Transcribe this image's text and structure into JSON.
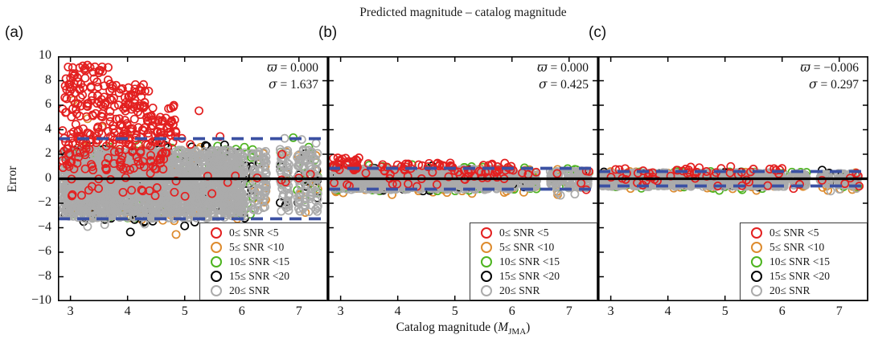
{
  "title": "Predicted magnitude – catalog magnitude",
  "axes": {
    "ylabel": "Error",
    "xlabel_prefix": "Catalog magnitude (",
    "xlabel_M": "M",
    "xlabel_sub": "JMA",
    "xlabel_suffix": ")",
    "y_ticks": [
      {
        "v": 10,
        "t": "10"
      },
      {
        "v": 8,
        "t": "8"
      },
      {
        "v": 6,
        "t": "6"
      },
      {
        "v": 4,
        "t": "4"
      },
      {
        "v": 2,
        "t": "2"
      },
      {
        "v": 0,
        "t": "0"
      },
      {
        "v": -2,
        "t": "−2"
      },
      {
        "v": -4,
        "t": "−4"
      },
      {
        "v": -6,
        "t": "−6"
      },
      {
        "v": -8,
        "t": "−8"
      },
      {
        "v": -10,
        "t": "−10"
      }
    ],
    "x_ticks": [
      {
        "v": 3,
        "t": "3"
      },
      {
        "v": 4,
        "t": "4"
      },
      {
        "v": 5,
        "t": "5"
      },
      {
        "v": 6,
        "t": "6"
      },
      {
        "v": 7,
        "t": "7"
      }
    ]
  },
  "legend": {
    "items": [
      {
        "key": "red",
        "label": "0≤ SNR <5"
      },
      {
        "key": "orange",
        "label": "5≤ SNR <10"
      },
      {
        "key": "green",
        "label": "10≤ SNR <15"
      },
      {
        "key": "black",
        "label": "15≤ SNR <20"
      },
      {
        "key": "gray",
        "label": "20≤ SNR"
      }
    ]
  },
  "colors": {
    "red": "#e32020",
    "orange": "#dd8b2e",
    "green": "#4db41f",
    "black": "#000000",
    "gray": "#ababab",
    "dashed": "#3b51a3",
    "zero": "#000000",
    "axis": "#000000"
  },
  "chart_data": {
    "type": "scatter",
    "x_range": [
      2.78,
      7.51
    ],
    "y_range": [
      -10,
      10
    ],
    "cols_x": [
      6.2,
      6.3,
      6.4,
      6.7,
      6.8,
      7.0,
      7.1,
      7.2,
      7.3
    ],
    "panels": [
      {
        "label": "(a)",
        "varpi_sym": "ϖ",
        "varpi_val": " = 0.000",
        "sigma_sym": "σ",
        "sigma_val": " = 1.637",
        "dashed_y": [
          3.27,
          -3.27
        ],
        "zero_y": 0,
        "clusters": [
          {
            "c": "orange",
            "n": 120,
            "x": [
              2.85,
              6.05
            ],
            "y": [
              -3.45,
              2.7
            ]
          },
          {
            "c": "orange",
            "cols": true,
            "n": 28,
            "y": [
              -2.9,
              2.3
            ]
          },
          {
            "c": "orange",
            "pts": [
              [
                4.85,
                -4.55
              ],
              [
                5.35,
                -4.2
              ],
              [
                3.05,
                6.4
              ],
              [
                3.3,
                4.9
              ],
              [
                3.55,
                4.2
              ],
              [
                4.0,
                3.6
              ]
            ]
          },
          {
            "c": "green",
            "n": 130,
            "x": [
              2.85,
              6.1
            ],
            "y": [
              -3.2,
              2.75
            ]
          },
          {
            "c": "green",
            "cols": true,
            "n": 24,
            "y": [
              -2.2,
              2.7
            ]
          },
          {
            "c": "green",
            "pts": [
              [
                6.9,
                3.35
              ],
              [
                6.15,
                -2.9
              ]
            ]
          },
          {
            "c": "black",
            "n": 120,
            "x": [
              2.85,
              6.1
            ],
            "y": [
              -3.55,
              2.85
            ]
          },
          {
            "c": "black",
            "cols": true,
            "n": 18,
            "y": [
              -2.5,
              2.5
            ]
          },
          {
            "c": "black",
            "pts": [
              [
                4.05,
                -4.35
              ],
              [
                5.0,
                -3.85
              ],
              [
                3.35,
                3.2
              ],
              [
                4.5,
                2.9
              ]
            ]
          },
          {
            "c": "gray",
            "n": 1500,
            "x": [
              2.85,
              6.05
            ],
            "y": [
              -3.25,
              2.35
            ]
          },
          {
            "c": "gray",
            "n": 500,
            "x": [
              2.85,
              6.05
            ],
            "y": [
              -2.5,
              1.5
            ]
          },
          {
            "c": "gray",
            "cols": true,
            "n": 200,
            "y": [
              -2.7,
              2.5
            ]
          },
          {
            "c": "gray",
            "pts": [
              [
                6.75,
                3.3
              ],
              [
                7.05,
                3.2
              ],
              [
                7.3,
                2.9
              ],
              [
                3.3,
                -3.9
              ],
              [
                3.6,
                -3.75
              ],
              [
                4.3,
                -3.7
              ]
            ]
          },
          {
            "c": "red",
            "n": 130,
            "x": [
              2.85,
              3.7
            ],
            "y": [
              2.6,
              9.3
            ]
          },
          {
            "c": "red",
            "n": 90,
            "x": [
              3.7,
              4.35
            ],
            "y": [
              2.6,
              7.7
            ]
          },
          {
            "c": "red",
            "n": 50,
            "x": [
              4.35,
              4.85
            ],
            "y": [
              2.6,
              6.0
            ]
          },
          {
            "c": "red",
            "n": 70,
            "x": [
              2.85,
              4.7
            ],
            "y": [
              0.6,
              2.6
            ]
          },
          {
            "c": "red",
            "n": 25,
            "x": [
              2.85,
              5.9
            ],
            "y": [
              -1.5,
              0.6
            ]
          },
          {
            "c": "red",
            "cols": true,
            "n": 6,
            "y": [
              -1.0,
              2.0
            ]
          },
          {
            "c": "red",
            "pts": [
              [
                5.25,
                5.55
              ],
              [
                5.62,
                3.45
              ],
              [
                4.95,
                3.3
              ],
              [
                5.1,
                2.8
              ],
              [
                4.37,
                7.15
              ]
            ]
          }
        ]
      },
      {
        "label": "(b)",
        "varpi_sym": "ϖ",
        "varpi_val": " = 0.000",
        "sigma_sym": "σ",
        "sigma_val": " = 0.425",
        "dashed_y": [
          0.85,
          -0.85
        ],
        "zero_y": 0,
        "clusters": [
          {
            "c": "orange",
            "n": 90,
            "x": [
              2.85,
              6.05
            ],
            "y": [
              -1.15,
              0.95
            ]
          },
          {
            "c": "orange",
            "cols": true,
            "n": 22,
            "y": [
              -1.1,
              0.8
            ]
          },
          {
            "c": "orange",
            "pts": [
              [
                6.8,
                -1.3
              ],
              [
                3.9,
                -1.3
              ],
              [
                5.3,
                -1.2
              ]
            ]
          },
          {
            "c": "green",
            "n": 80,
            "x": [
              2.85,
              6.05
            ],
            "y": [
              -1.05,
              1.0
            ]
          },
          {
            "c": "green",
            "cols": true,
            "n": 18,
            "y": [
              -0.9,
              0.9
            ]
          },
          {
            "c": "green",
            "pts": [
              [
                7.35,
                0.5
              ],
              [
                4.25,
                1.15
              ],
              [
                3.5,
                1.1
              ]
            ]
          },
          {
            "c": "black",
            "n": 70,
            "x": [
              2.85,
              6.05
            ],
            "y": [
              -1.0,
              0.9
            ]
          },
          {
            "c": "black",
            "cols": true,
            "n": 14,
            "y": [
              -0.8,
              0.8
            ]
          },
          {
            "c": "black",
            "pts": [
              [
                4.6,
                1.05
              ]
            ]
          },
          {
            "c": "gray",
            "n": 800,
            "x": [
              2.85,
              6.05
            ],
            "y": [
              -0.9,
              0.8
            ]
          },
          {
            "c": "gray",
            "n": 300,
            "x": [
              2.85,
              6.05
            ],
            "y": [
              -0.6,
              0.55
            ]
          },
          {
            "c": "gray",
            "cols": true,
            "n": 170,
            "y": [
              -0.75,
              0.65
            ]
          },
          {
            "c": "gray",
            "pts": [
              [
                6.85,
                -1.35
              ],
              [
                7.1,
                -1.25
              ],
              [
                6.8,
                -1.15
              ],
              [
                3.1,
                1.1
              ]
            ]
          },
          {
            "c": "red",
            "n": 35,
            "x": [
              2.85,
              3.35
            ],
            "y": [
              0.7,
              1.75
            ]
          },
          {
            "c": "red",
            "n": 55,
            "x": [
              3.35,
              6.05
            ],
            "y": [
              0.5,
              1.3
            ]
          },
          {
            "c": "red",
            "n": 25,
            "x": [
              2.85,
              6.0
            ],
            "y": [
              -0.7,
              0.5
            ]
          },
          {
            "c": "red",
            "cols": true,
            "n": 6,
            "y": [
              -0.5,
              0.8
            ]
          },
          {
            "c": "red",
            "pts": [
              [
                7.3,
                -0.9
              ],
              [
                7.35,
                0.6
              ],
              [
                4.55,
                1.25
              ],
              [
                5.5,
                1.1
              ],
              [
                2.95,
                1.7
              ]
            ]
          }
        ]
      },
      {
        "label": "(c)",
        "varpi_sym": "ϖ",
        "varpi_val": " = −0.006",
        "sigma_sym": "σ",
        "sigma_val": " = 0.297",
        "dashed_y": [
          0.59,
          -0.59
        ],
        "zero_y": 0,
        "clusters": [
          {
            "c": "orange",
            "n": 80,
            "x": [
              2.85,
              6.05
            ],
            "y": [
              -0.85,
              0.6
            ]
          },
          {
            "c": "orange",
            "cols": true,
            "n": 20,
            "y": [
              -0.9,
              0.5
            ]
          },
          {
            "c": "orange",
            "pts": [
              [
                5.55,
                -0.95
              ],
              [
                6.8,
                -0.95
              ]
            ]
          },
          {
            "c": "green",
            "n": 70,
            "x": [
              2.85,
              6.05
            ],
            "y": [
              -0.8,
              0.6
            ]
          },
          {
            "c": "green",
            "cols": true,
            "n": 16,
            "y": [
              -0.7,
              0.55
            ]
          },
          {
            "c": "green",
            "pts": [
              [
                4.9,
                -0.95
              ],
              [
                5.3,
                -0.9
              ]
            ]
          },
          {
            "c": "black",
            "n": 60,
            "x": [
              2.85,
              6.05
            ],
            "y": [
              -0.75,
              0.6
            ]
          },
          {
            "c": "black",
            "cols": true,
            "n": 12,
            "y": [
              -0.6,
              0.5
            ]
          },
          {
            "c": "black",
            "pts": [
              [
                6.7,
                0.7
              ]
            ]
          },
          {
            "c": "gray",
            "n": 750,
            "x": [
              2.85,
              6.05
            ],
            "y": [
              -0.65,
              0.5
            ]
          },
          {
            "c": "gray",
            "n": 250,
            "x": [
              2.85,
              6.05
            ],
            "y": [
              -0.45,
              0.35
            ]
          },
          {
            "c": "gray",
            "cols": true,
            "n": 160,
            "y": [
              -0.55,
              0.45
            ]
          },
          {
            "c": "gray",
            "pts": [
              [
                6.85,
                -1.0
              ],
              [
                7.0,
                -0.85
              ],
              [
                7.3,
                -0.8
              ]
            ]
          },
          {
            "c": "red",
            "n": 30,
            "x": [
              2.85,
              6.0
            ],
            "y": [
              0.4,
              0.85
            ]
          },
          {
            "c": "red",
            "n": 20,
            "x": [
              2.85,
              5.8
            ],
            "y": [
              -0.6,
              0.4
            ]
          },
          {
            "c": "red",
            "cols": true,
            "n": 5,
            "y": [
              -0.5,
              0.5
            ]
          },
          {
            "c": "red",
            "pts": [
              [
                4.4,
                0.95
              ],
              [
                5.1,
                1.0
              ],
              [
                4.55,
                0.9
              ],
              [
                7.35,
                -0.6
              ],
              [
                7.3,
                0.45
              ],
              [
                6.2,
                -0.8
              ]
            ]
          }
        ]
      }
    ]
  }
}
